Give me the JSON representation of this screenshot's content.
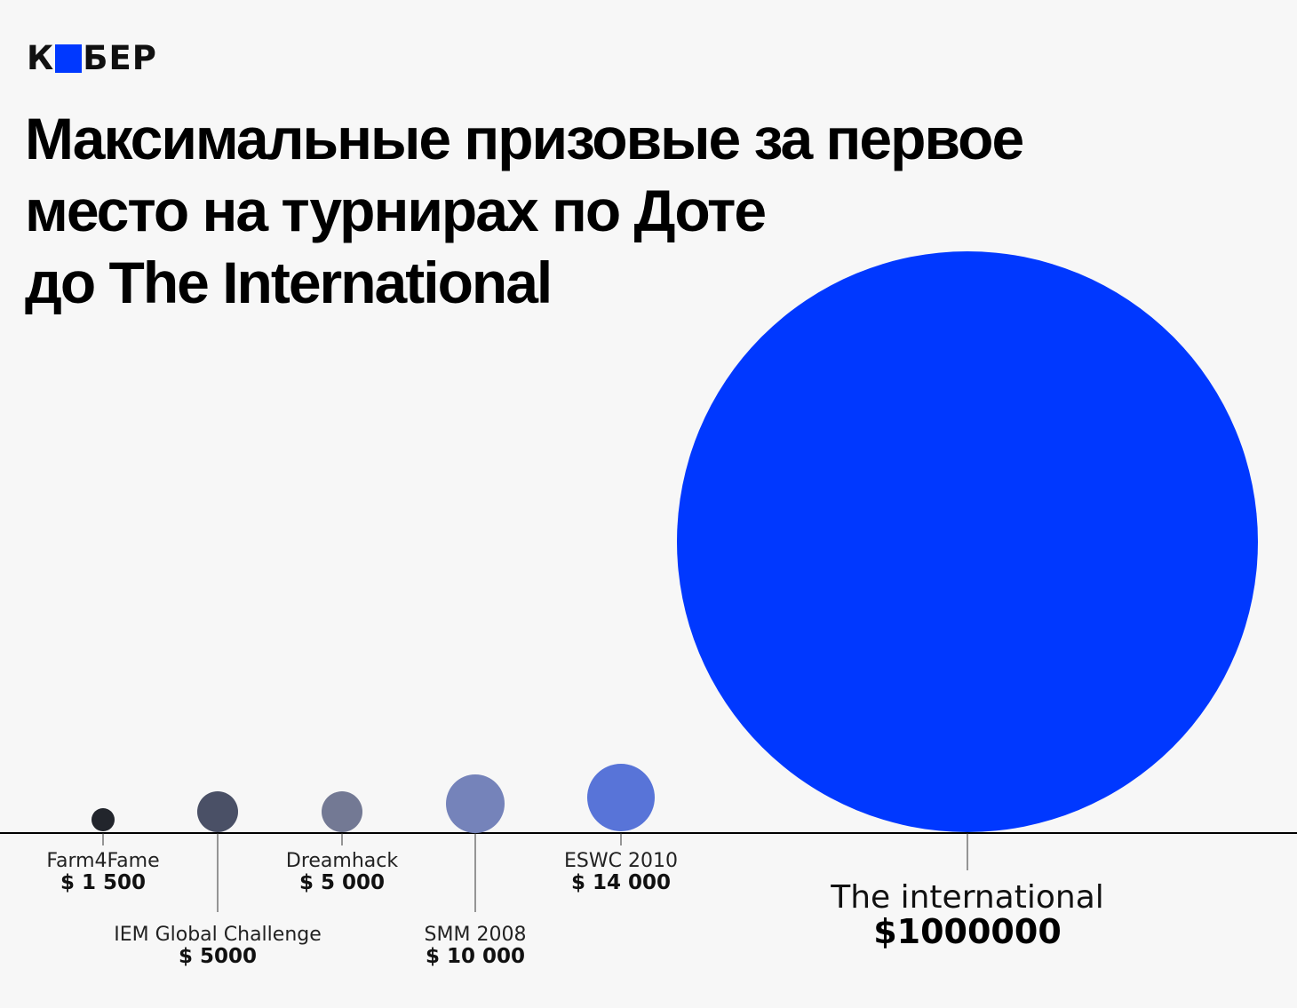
{
  "brand": {
    "logo_left": "К",
    "logo_right": "БЕР",
    "accent_color": "#0038ff"
  },
  "header": {
    "title_lines": [
      "Максимальные призовые за первое",
      "место на турнирах по Доте",
      "до The International"
    ]
  },
  "chart_data": {
    "type": "bubble",
    "title": "Максимальные призовые за первое место на турнирах по Доте до The International",
    "unit": "USD",
    "items": [
      {
        "name": "Farm4Fame",
        "value": 1500,
        "value_label": "$ 1 500",
        "color": "#22252c",
        "label_row": "upper"
      },
      {
        "name": "IEM Global Challenge",
        "value": 5000,
        "value_label": "$ 5000",
        "color": "#4a5066",
        "label_row": "lower"
      },
      {
        "name": "Dreamhack",
        "value": 5000,
        "value_label": "$ 5 000",
        "color": "#737994",
        "label_row": "upper"
      },
      {
        "name": "SMM 2008",
        "value": 10000,
        "value_label": "$ 10 000",
        "color": "#7583ba",
        "label_row": "lower"
      },
      {
        "name": "ESWC 2010",
        "value": 14000,
        "value_label": "$ 14 000",
        "color": "#5874d8",
        "label_row": "upper"
      },
      {
        "name": "The international",
        "value": 1000000,
        "value_label": "$1000000",
        "color": "#0038ff",
        "label_row": "big"
      }
    ]
  }
}
